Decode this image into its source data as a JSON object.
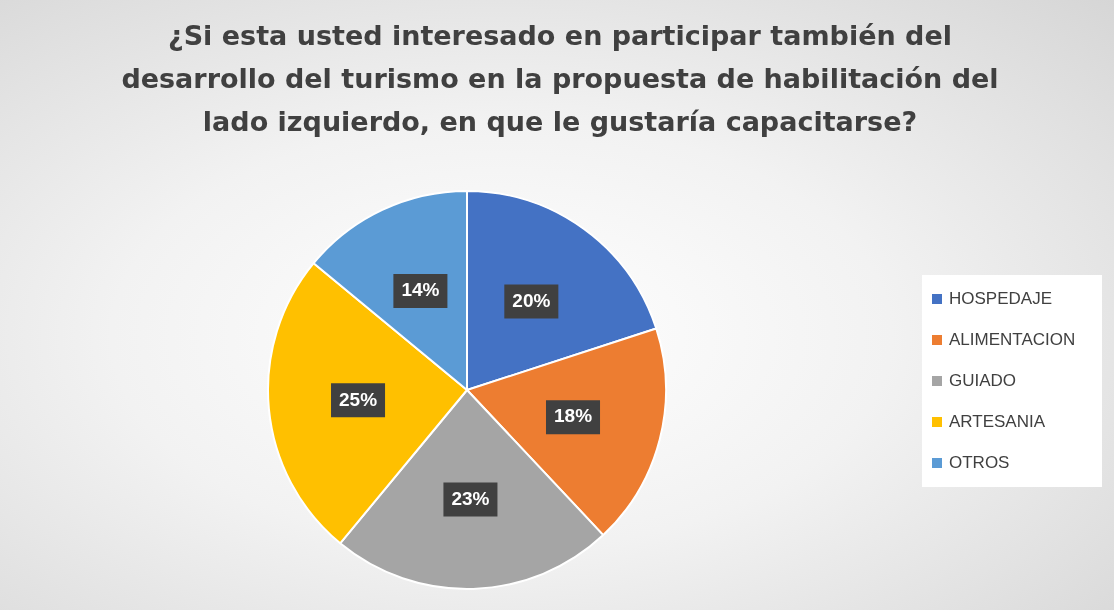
{
  "chart_data": {
    "type": "pie",
    "title": "¿Si esta usted interesado en participar también del desarrollo del turismo en la propuesta de habilitación del lado izquierdo, en que le gustaría capacitarse?",
    "categories": [
      "HOSPEDAJE",
      "ALIMENTACION",
      "GUIADO",
      "ARTESANIA",
      "OTROS"
    ],
    "values": [
      20,
      18,
      23,
      25,
      14
    ],
    "colors": [
      "#4472c4",
      "#ed7d31",
      "#a5a5a5",
      "#ffc000",
      "#5b9bd5"
    ],
    "value_labels": [
      "20%",
      "18%",
      "23%",
      "25%",
      "14%"
    ],
    "legend": "right"
  }
}
